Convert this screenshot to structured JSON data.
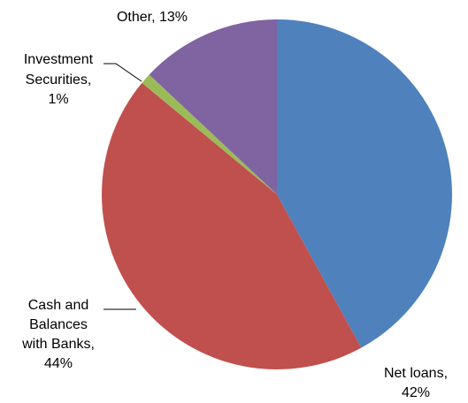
{
  "chart_data": {
    "type": "pie",
    "title": "",
    "slices": [
      {
        "label": "Net loans",
        "value": 42,
        "display_lines": [
          "Net loans,",
          "42%"
        ],
        "color": "#4F81BD"
      },
      {
        "label": "Cash and Balances with Banks",
        "value": 44,
        "display_lines": [
          "Cash and",
          "Balances",
          "with Banks,",
          "44%"
        ],
        "color": "#C0504D"
      },
      {
        "label": "Investment Securities",
        "value": 1,
        "display_lines": [
          "Investment",
          "Securities,",
          "1%"
        ],
        "color": "#9BBB59"
      },
      {
        "label": "Other",
        "value": 13,
        "display_lines": [
          "Other, 13%"
        ],
        "color": "#8064A2"
      }
    ],
    "value_unit": "%",
    "start_angle_deg": 0,
    "direction": "clockwise",
    "legend": "none",
    "grid": false
  }
}
